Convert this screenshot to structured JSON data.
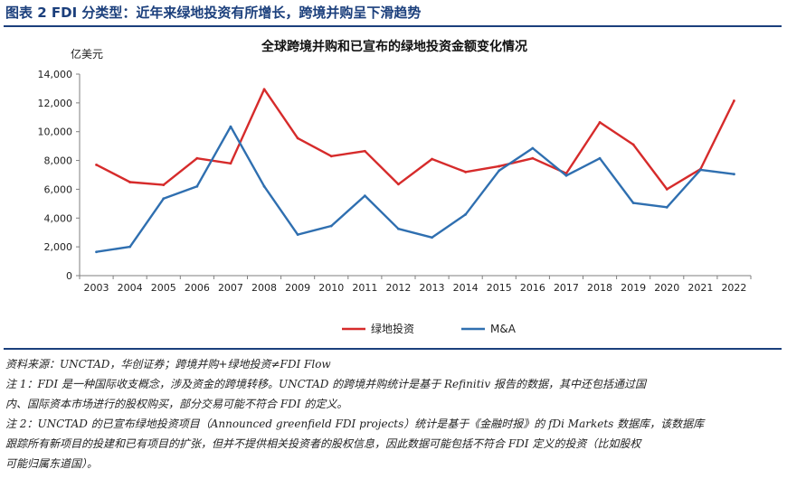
{
  "figure": {
    "title": "图表 2   FDI 分类型：近年来绿地投资有所增长，跨境并购呈下滑趋势"
  },
  "chart_data": {
    "type": "line",
    "title": "全球跨境并购和已宣布的绿地投资金额变化情况",
    "ylabel": "亿美元",
    "xlabel": "",
    "ylim": [
      0,
      14000
    ],
    "yticks": [
      0,
      2000,
      4000,
      6000,
      8000,
      10000,
      12000,
      14000
    ],
    "ytick_labels": [
      "0",
      "2,000",
      "4,000",
      "6,000",
      "8,000",
      "10,000",
      "12,000",
      "14,000"
    ],
    "categories": [
      "2003",
      "2004",
      "2005",
      "2006",
      "2007",
      "2008",
      "2009",
      "2010",
      "2011",
      "2012",
      "2013",
      "2014",
      "2015",
      "2016",
      "2017",
      "2018",
      "2019",
      "2020",
      "2021",
      "2022"
    ],
    "legend_position": "bottom-center",
    "series": [
      {
        "name": "绿地投资",
        "color": "#d62b2b",
        "values": [
          7700,
          6500,
          6300,
          8150,
          7800,
          12950,
          9550,
          8300,
          8650,
          6350,
          8100,
          7200,
          7600,
          8150,
          7100,
          10650,
          9100,
          6000,
          7400,
          12150
        ]
      },
      {
        "name": "M&A",
        "color": "#2f6fb0",
        "values": [
          1650,
          2000,
          5350,
          6200,
          10350,
          6200,
          2850,
          3450,
          5550,
          3250,
          2650,
          4250,
          7300,
          8850,
          6950,
          8150,
          5050,
          4750,
          7350,
          7050
        ]
      }
    ]
  },
  "notes": {
    "source": "资料来源：UNCTAD，华创证券；跨境并购+绿地投资≠FDI Flow",
    "note1_line1": "注 1：FDI 是一种国际收支概念，涉及资金的跨境转移。UNCTAD 的跨境并购统计是基于 Refinitiv 报告的数据，其中还包括通过国",
    "note1_line2": "内、国际资本市场进行的股权购买，部分交易可能不符合 FDI 的定义。",
    "note2_line1": "注 2：UNCTAD 的已宣布绿地投资项目（Announced greenfield FDI projects）统计是基于《金融时报》的 fDi Markets 数据库，该数据库",
    "note2_line2": "跟踪所有新项目的投建和已有项目的扩张，但并不提供相关投资者的股权信息，因此数据可能包括不符合 FDI 定义的投资（比如股权",
    "note2_line3": "可能归属东道国）。"
  }
}
